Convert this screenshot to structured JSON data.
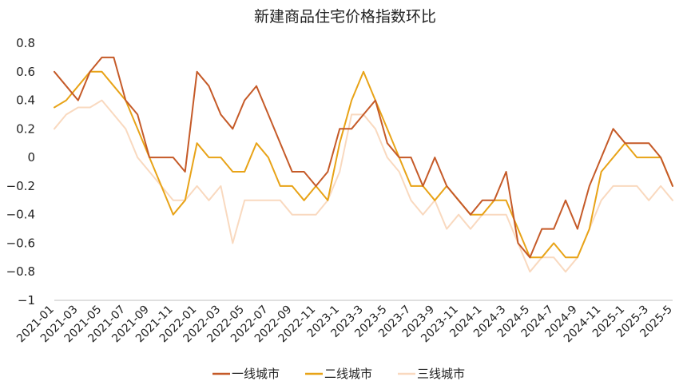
{
  "chart_data": {
    "type": "line",
    "title": "新建商品住宅价格指数环比",
    "xlabel": "",
    "ylabel": "",
    "ylim": [
      -1,
      0.8
    ],
    "yticks": [
      0.8,
      0.6,
      0.4,
      0.2,
      0,
      -0.2,
      -0.4,
      -0.6,
      -0.8,
      -1
    ],
    "ytick_labels": [
      "0.8",
      "0.6",
      "0.4",
      "0.2",
      "0",
      "−0.2",
      "−0.4",
      "−0.6",
      "−0.8",
      "−1"
    ],
    "grid": false,
    "legend_position": "bottom",
    "x": [
      "2021-01",
      "2021-02",
      "2021-03",
      "2021-04",
      "2021-05",
      "2021-06",
      "2021-07",
      "2021-08",
      "2021-09",
      "2021-10",
      "2021-11",
      "2021-12",
      "2022-01",
      "2022-02",
      "2022-03",
      "2022-04",
      "2022-05",
      "2022-06",
      "2022-07",
      "2022-08",
      "2022-09",
      "2022-10",
      "2022-11",
      "2022-12",
      "2023-1",
      "2023-2",
      "2023-3",
      "2023-4",
      "2023-5",
      "2023-6",
      "2023-7",
      "2023-8",
      "2023-9",
      "2023-10",
      "2023-11",
      "2023-12",
      "2024-1",
      "2024-2",
      "2024-3",
      "2024-4",
      "2024-5",
      "2024-6",
      "2024-7",
      "2024-8",
      "2024-9",
      "2024-10",
      "2024-11",
      "2024-12",
      "2025-1",
      "2025-2",
      "2025-3",
      "2025-4",
      "2025-5"
    ],
    "xtick_labels": [
      "2021-01",
      "2021-03",
      "2021-05",
      "2021-07",
      "2021-09",
      "2021-11",
      "2022-01",
      "2022-03",
      "2022-05",
      "2022-07",
      "2022-09",
      "2022-11",
      "2023-1",
      "2023-3",
      "2023-5",
      "2023-7",
      "2023-9",
      "2023-11",
      "2024-1",
      "2024-3",
      "2024-5",
      "2024-7",
      "2024-9",
      "2024-11",
      "2025-1",
      "2025-3",
      "2025-5"
    ],
    "series": [
      {
        "name": "一线城市",
        "color": "#C55A28",
        "values": [
          0.6,
          0.5,
          0.4,
          0.6,
          0.7,
          0.7,
          0.4,
          0.3,
          0.0,
          0.0,
          0.0,
          -0.1,
          0.6,
          0.5,
          0.3,
          0.2,
          0.4,
          0.5,
          0.3,
          0.1,
          -0.1,
          -0.1,
          -0.2,
          -0.1,
          0.2,
          0.2,
          0.3,
          0.4,
          0.1,
          0.0,
          0.0,
          -0.2,
          0.0,
          -0.2,
          -0.3,
          -0.4,
          -0.3,
          -0.3,
          -0.1,
          -0.6,
          -0.7,
          -0.5,
          -0.5,
          -0.3,
          -0.5,
          -0.2,
          0.0,
          0.2,
          0.1,
          0.1,
          0.1,
          0.0,
          -0.2
        ]
      },
      {
        "name": "二线城市",
        "color": "#E8A317",
        "values": [
          0.35,
          0.4,
          0.5,
          0.6,
          0.6,
          0.5,
          0.4,
          0.2,
          0.0,
          -0.2,
          -0.4,
          -0.3,
          0.1,
          0.0,
          0.0,
          -0.1,
          -0.1,
          0.1,
          0.0,
          -0.2,
          -0.2,
          -0.3,
          -0.2,
          -0.3,
          0.1,
          0.4,
          0.6,
          0.4,
          0.2,
          0.0,
          -0.2,
          -0.2,
          -0.3,
          -0.2,
          -0.3,
          -0.4,
          -0.4,
          -0.3,
          -0.3,
          -0.5,
          -0.7,
          -0.7,
          -0.6,
          -0.7,
          -0.7,
          -0.5,
          -0.1,
          0.0,
          0.1,
          0.0,
          0.0,
          0.0,
          -0.2
        ]
      },
      {
        "name": "三线城市",
        "color": "#F9D9BF",
        "values": [
          0.2,
          0.3,
          0.35,
          0.35,
          0.4,
          0.3,
          0.2,
          0.0,
          -0.1,
          -0.2,
          -0.3,
          -0.3,
          -0.2,
          -0.3,
          -0.2,
          -0.6,
          -0.3,
          -0.3,
          -0.3,
          -0.3,
          -0.4,
          -0.4,
          -0.4,
          -0.3,
          -0.1,
          0.3,
          0.3,
          0.2,
          0.0,
          -0.1,
          -0.3,
          -0.4,
          -0.3,
          -0.5,
          -0.4,
          -0.5,
          -0.4,
          -0.4,
          -0.4,
          -0.6,
          -0.8,
          -0.7,
          -0.7,
          -0.8,
          -0.7,
          -0.5,
          -0.3,
          -0.2,
          -0.2,
          -0.2,
          -0.3,
          -0.2,
          -0.3
        ]
      }
    ]
  }
}
